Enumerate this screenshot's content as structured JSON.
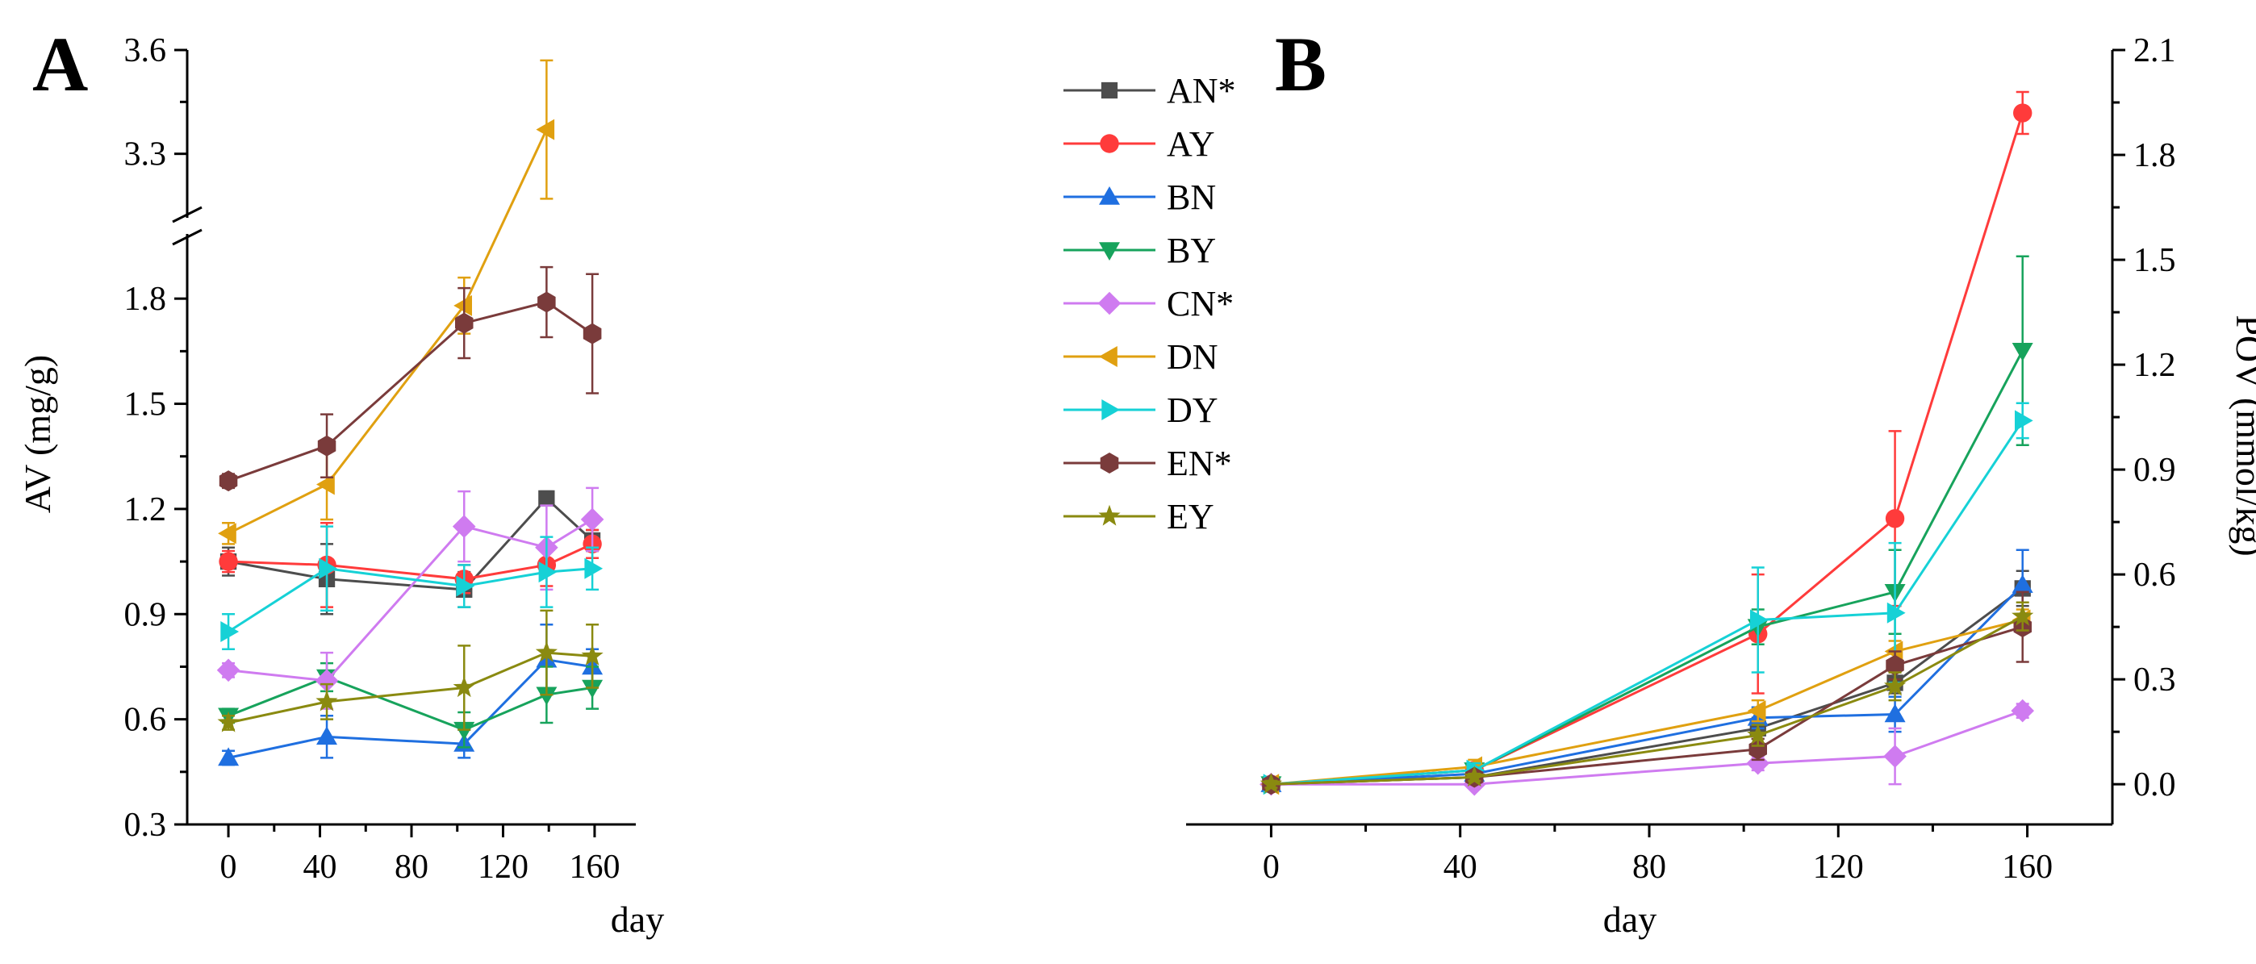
{
  "figure": {
    "panel_a_letter": "A",
    "panel_b_letter": "B"
  },
  "colors": {
    "AN*": "#4d4d4d",
    "AY": "#ff3b3b",
    "BN": "#1f6fe0",
    "BY": "#17a35c",
    "CN*": "#cf7bf0",
    "DN": "#e0a010",
    "DY": "#16d1d6",
    "EN*": "#7a3b3b",
    "EY": "#8a8a10"
  },
  "legend": [
    {
      "label": "AN*",
      "marker": "square"
    },
    {
      "label": "AY",
      "marker": "circle"
    },
    {
      "label": "BN",
      "marker": "triangle-up"
    },
    {
      "label": "BY",
      "marker": "triangle-down"
    },
    {
      "label": "CN*",
      "marker": "diamond"
    },
    {
      "label": "DN",
      "marker": "triangle-left"
    },
    {
      "label": "DY",
      "marker": "triangle-right"
    },
    {
      "label": "EN*",
      "marker": "hexagon"
    },
    {
      "label": "EY",
      "marker": "star"
    }
  ],
  "chart_data": [
    {
      "panel": "A",
      "type": "line",
      "xlabel": "day",
      "ylabel": "AV (mg/g)",
      "xlim": [
        -18,
        178
      ],
      "xticks": [
        "0",
        "40",
        "80",
        "120",
        "160"
      ],
      "y_axis_break": {
        "lower_range": [
          0.3,
          1.95
        ],
        "upper_range": [
          3.15,
          3.6
        ]
      },
      "yticks": [
        "0.3",
        "0.6",
        "0.9",
        "1.2",
        "1.5",
        "1.8",
        "3.3",
        "3.6"
      ],
      "series": [
        {
          "name": "AN*",
          "x": [
            0,
            43,
            103,
            139,
            159
          ],
          "y": [
            1.05,
            1.0,
            0.97,
            1.23,
            1.11
          ],
          "err": [
            0.04,
            0.1,
            0.05,
            0.02,
            0.03
          ]
        },
        {
          "name": "AY",
          "x": [
            0,
            43,
            103,
            139,
            159
          ],
          "y": [
            1.05,
            1.04,
            1.0,
            1.04,
            1.1
          ],
          "err": [
            0.03,
            0.12,
            0.04,
            0.06,
            0.04
          ]
        },
        {
          "name": "BN",
          "x": [
            0,
            43,
            103,
            139,
            159
          ],
          "y": [
            0.49,
            0.55,
            0.53,
            0.77,
            0.75
          ],
          "err": [
            0.02,
            0.06,
            0.04,
            0.1,
            0.05
          ]
        },
        {
          "name": "BY",
          "x": [
            0,
            43,
            103,
            139,
            159
          ],
          "y": [
            0.61,
            0.72,
            0.57,
            0.67,
            0.69
          ],
          "err": [
            0.02,
            0.04,
            0.05,
            0.08,
            0.06
          ]
        },
        {
          "name": "CN*",
          "x": [
            0,
            43,
            103,
            139,
            159
          ],
          "y": [
            0.74,
            0.71,
            1.15,
            1.09,
            1.17
          ],
          "err": [
            0.02,
            0.08,
            0.1,
            0.12,
            0.09
          ]
        },
        {
          "name": "DN",
          "x": [
            0,
            43,
            103,
            139
          ],
          "y": [
            1.13,
            1.27,
            1.78,
            3.37
          ],
          "err": [
            0.03,
            0.1,
            0.08,
            0.2
          ]
        },
        {
          "name": "DY",
          "x": [
            0,
            43,
            103,
            139,
            159
          ],
          "y": [
            0.85,
            1.03,
            0.98,
            1.02,
            1.03
          ],
          "err": [
            0.05,
            0.12,
            0.06,
            0.1,
            0.06
          ]
        },
        {
          "name": "EN*",
          "x": [
            0,
            43,
            103,
            139,
            159
          ],
          "y": [
            1.28,
            1.38,
            1.73,
            1.79,
            1.7
          ],
          "err": [
            0.02,
            0.09,
            0.1,
            0.1,
            0.17
          ]
        },
        {
          "name": "EY",
          "x": [
            0,
            43,
            103,
            139,
            159
          ],
          "y": [
            0.59,
            0.65,
            0.69,
            0.79,
            0.78
          ],
          "err": [
            0.02,
            0.05,
            0.12,
            0.12,
            0.09
          ]
        }
      ]
    },
    {
      "panel": "B",
      "type": "line",
      "xlabel": "day",
      "ylabel": "POV (mmol/kg)",
      "xlim": [
        -18,
        178
      ],
      "ylim": [
        -0.115,
        2.1
      ],
      "xticks": [
        "0",
        "40",
        "80",
        "120",
        "160"
      ],
      "yticks": [
        "0.0",
        "0.3",
        "0.6",
        "0.9",
        "1.2",
        "1.5",
        "1.8",
        "2.1"
      ],
      "series": [
        {
          "name": "AN*",
          "x": [
            0,
            43,
            103,
            132,
            159
          ],
          "y": [
            0.0,
            0.02,
            0.16,
            0.29,
            0.56
          ],
          "err": [
            0.01,
            0.02,
            0.03,
            0.03,
            0.05
          ]
        },
        {
          "name": "AY",
          "x": [
            0,
            43,
            103,
            132,
            159
          ],
          "y": [
            0.0,
            0.04,
            0.43,
            0.76,
            1.92
          ],
          "err": [
            0.01,
            0.02,
            0.17,
            0.25,
            0.06
          ]
        },
        {
          "name": "BN",
          "x": [
            0,
            43,
            103,
            132,
            159
          ],
          "y": [
            0.0,
            0.03,
            0.19,
            0.2,
            0.57
          ],
          "err": [
            0.01,
            0.02,
            0.03,
            0.05,
            0.1
          ]
        },
        {
          "name": "BY",
          "x": [
            0,
            43,
            103,
            132,
            159
          ],
          "y": [
            0.0,
            0.04,
            0.45,
            0.55,
            1.24
          ],
          "err": [
            0.01,
            0.02,
            0.05,
            0.12,
            0.27
          ]
        },
        {
          "name": "CN*",
          "x": [
            0,
            43,
            103,
            132,
            159
          ],
          "y": [
            0.0,
            0.0,
            0.06,
            0.08,
            0.21
          ],
          "err": [
            0.01,
            0.01,
            0.02,
            0.08,
            0.02
          ]
        },
        {
          "name": "DN",
          "x": [
            0,
            43,
            103,
            132,
            159
          ],
          "y": [
            0.0,
            0.05,
            0.21,
            0.38,
            0.47
          ],
          "err": [
            0.01,
            0.02,
            0.03,
            0.03,
            0.03
          ]
        },
        {
          "name": "DY",
          "x": [
            0,
            43,
            103,
            132,
            159
          ],
          "y": [
            0.0,
            0.04,
            0.47,
            0.49,
            1.04
          ],
          "err": [
            0.01,
            0.02,
            0.15,
            0.2,
            0.05
          ]
        },
        {
          "name": "EN*",
          "x": [
            0,
            43,
            103,
            132,
            159
          ],
          "y": [
            0.0,
            0.02,
            0.1,
            0.34,
            0.45
          ],
          "err": [
            0.01,
            0.01,
            0.03,
            0.04,
            0.1
          ]
        },
        {
          "name": "EY",
          "x": [
            0,
            43,
            103,
            132,
            159
          ],
          "y": [
            0.0,
            0.02,
            0.14,
            0.28,
            0.48
          ],
          "err": [
            0.01,
            0.01,
            0.03,
            0.04,
            0.04
          ]
        }
      ]
    }
  ]
}
